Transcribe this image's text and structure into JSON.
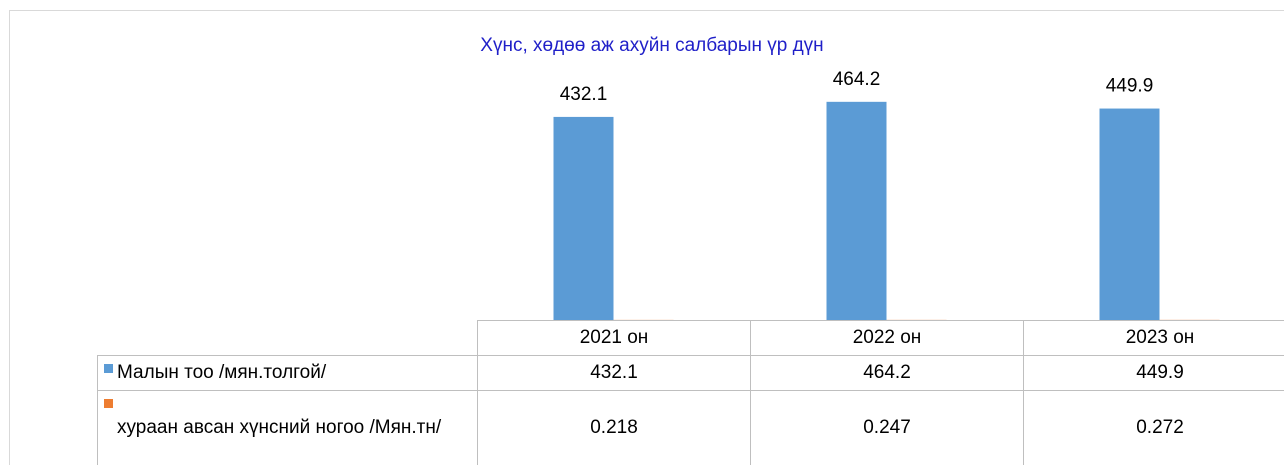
{
  "chart_data": {
    "type": "bar",
    "title": "Хүнс, хөдөө аж ахуйн салбарын үр дүн",
    "categories": [
      "2021 он",
      "2022 он",
      "2023 он"
    ],
    "series": [
      {
        "name": "Малын тоо /мян.толгой/",
        "color": "#5b9bd5",
        "values": [
          432.1,
          464.2,
          449.9
        ]
      },
      {
        "name": "хураан авсан хүнсний ногоо /Мян.тн/",
        "color": "#ed7d31",
        "values": [
          0.218,
          0.247,
          0.272
        ]
      }
    ],
    "ylim": [
      0,
      500
    ],
    "data_labels_series": 0
  }
}
